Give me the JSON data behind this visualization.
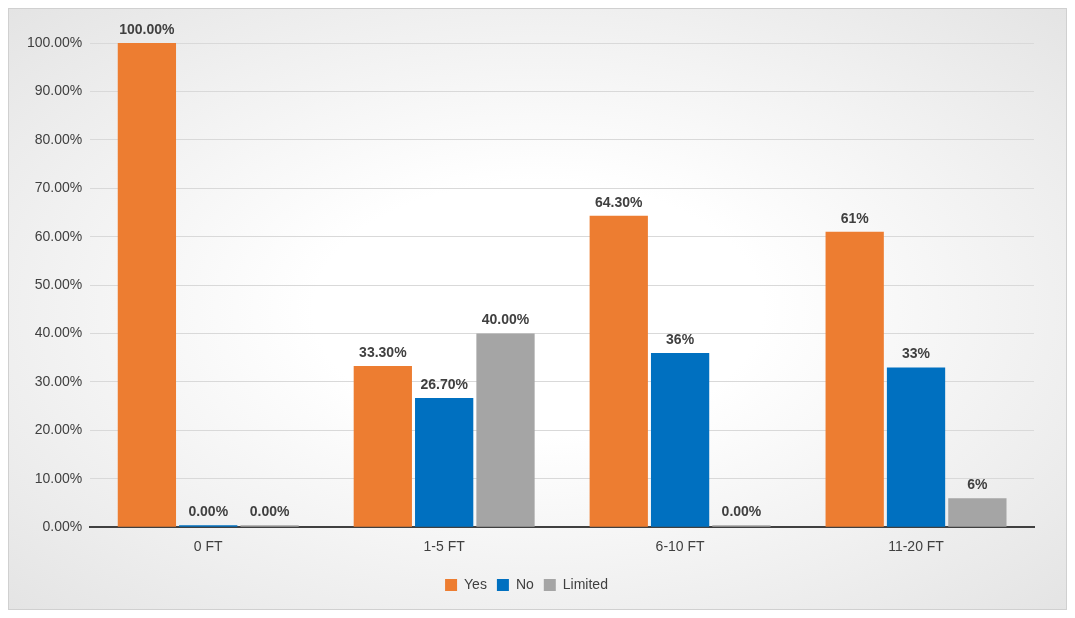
{
  "chart_data": {
    "type": "bar",
    "categories": [
      "0 FT",
      "1-5 FT",
      "6-10 FT",
      "11-20 FT"
    ],
    "series": [
      {
        "name": "Yes",
        "color": "#ed7d31",
        "values": [
          100,
          33.3,
          64.3,
          61
        ],
        "value_labels": [
          "100.00%",
          "33.30%",
          "64.30%",
          "61%"
        ]
      },
      {
        "name": "No",
        "color": "#0070c0",
        "values": [
          0,
          26.7,
          36,
          33
        ],
        "value_labels": [
          "0.00%",
          "26.70%",
          "36%",
          "33%"
        ]
      },
      {
        "name": "Limited",
        "color": "#a5a5a5",
        "values": [
          0,
          40,
          0,
          6
        ],
        "value_labels": [
          "0.00%",
          "40.00%",
          "0.00%",
          "6%"
        ]
      }
    ],
    "ylim": [
      0,
      100
    ],
    "yticks": [
      {
        "value": 0,
        "label": "0.00%"
      },
      {
        "value": 10,
        "label": "10.00%"
      },
      {
        "value": 20,
        "label": "20.00%"
      },
      {
        "value": 30,
        "label": "30.00%"
      },
      {
        "value": 40,
        "label": "40.00%"
      },
      {
        "value": 50,
        "label": "50.00%"
      },
      {
        "value": 60,
        "label": "60.00%"
      },
      {
        "value": 70,
        "label": "70.00%"
      },
      {
        "value": 80,
        "label": "80.00%"
      },
      {
        "value": 90,
        "label": "90.00%"
      },
      {
        "value": 100,
        "label": "100.00%"
      }
    ],
    "grid": "y",
    "legend": "bottom"
  }
}
